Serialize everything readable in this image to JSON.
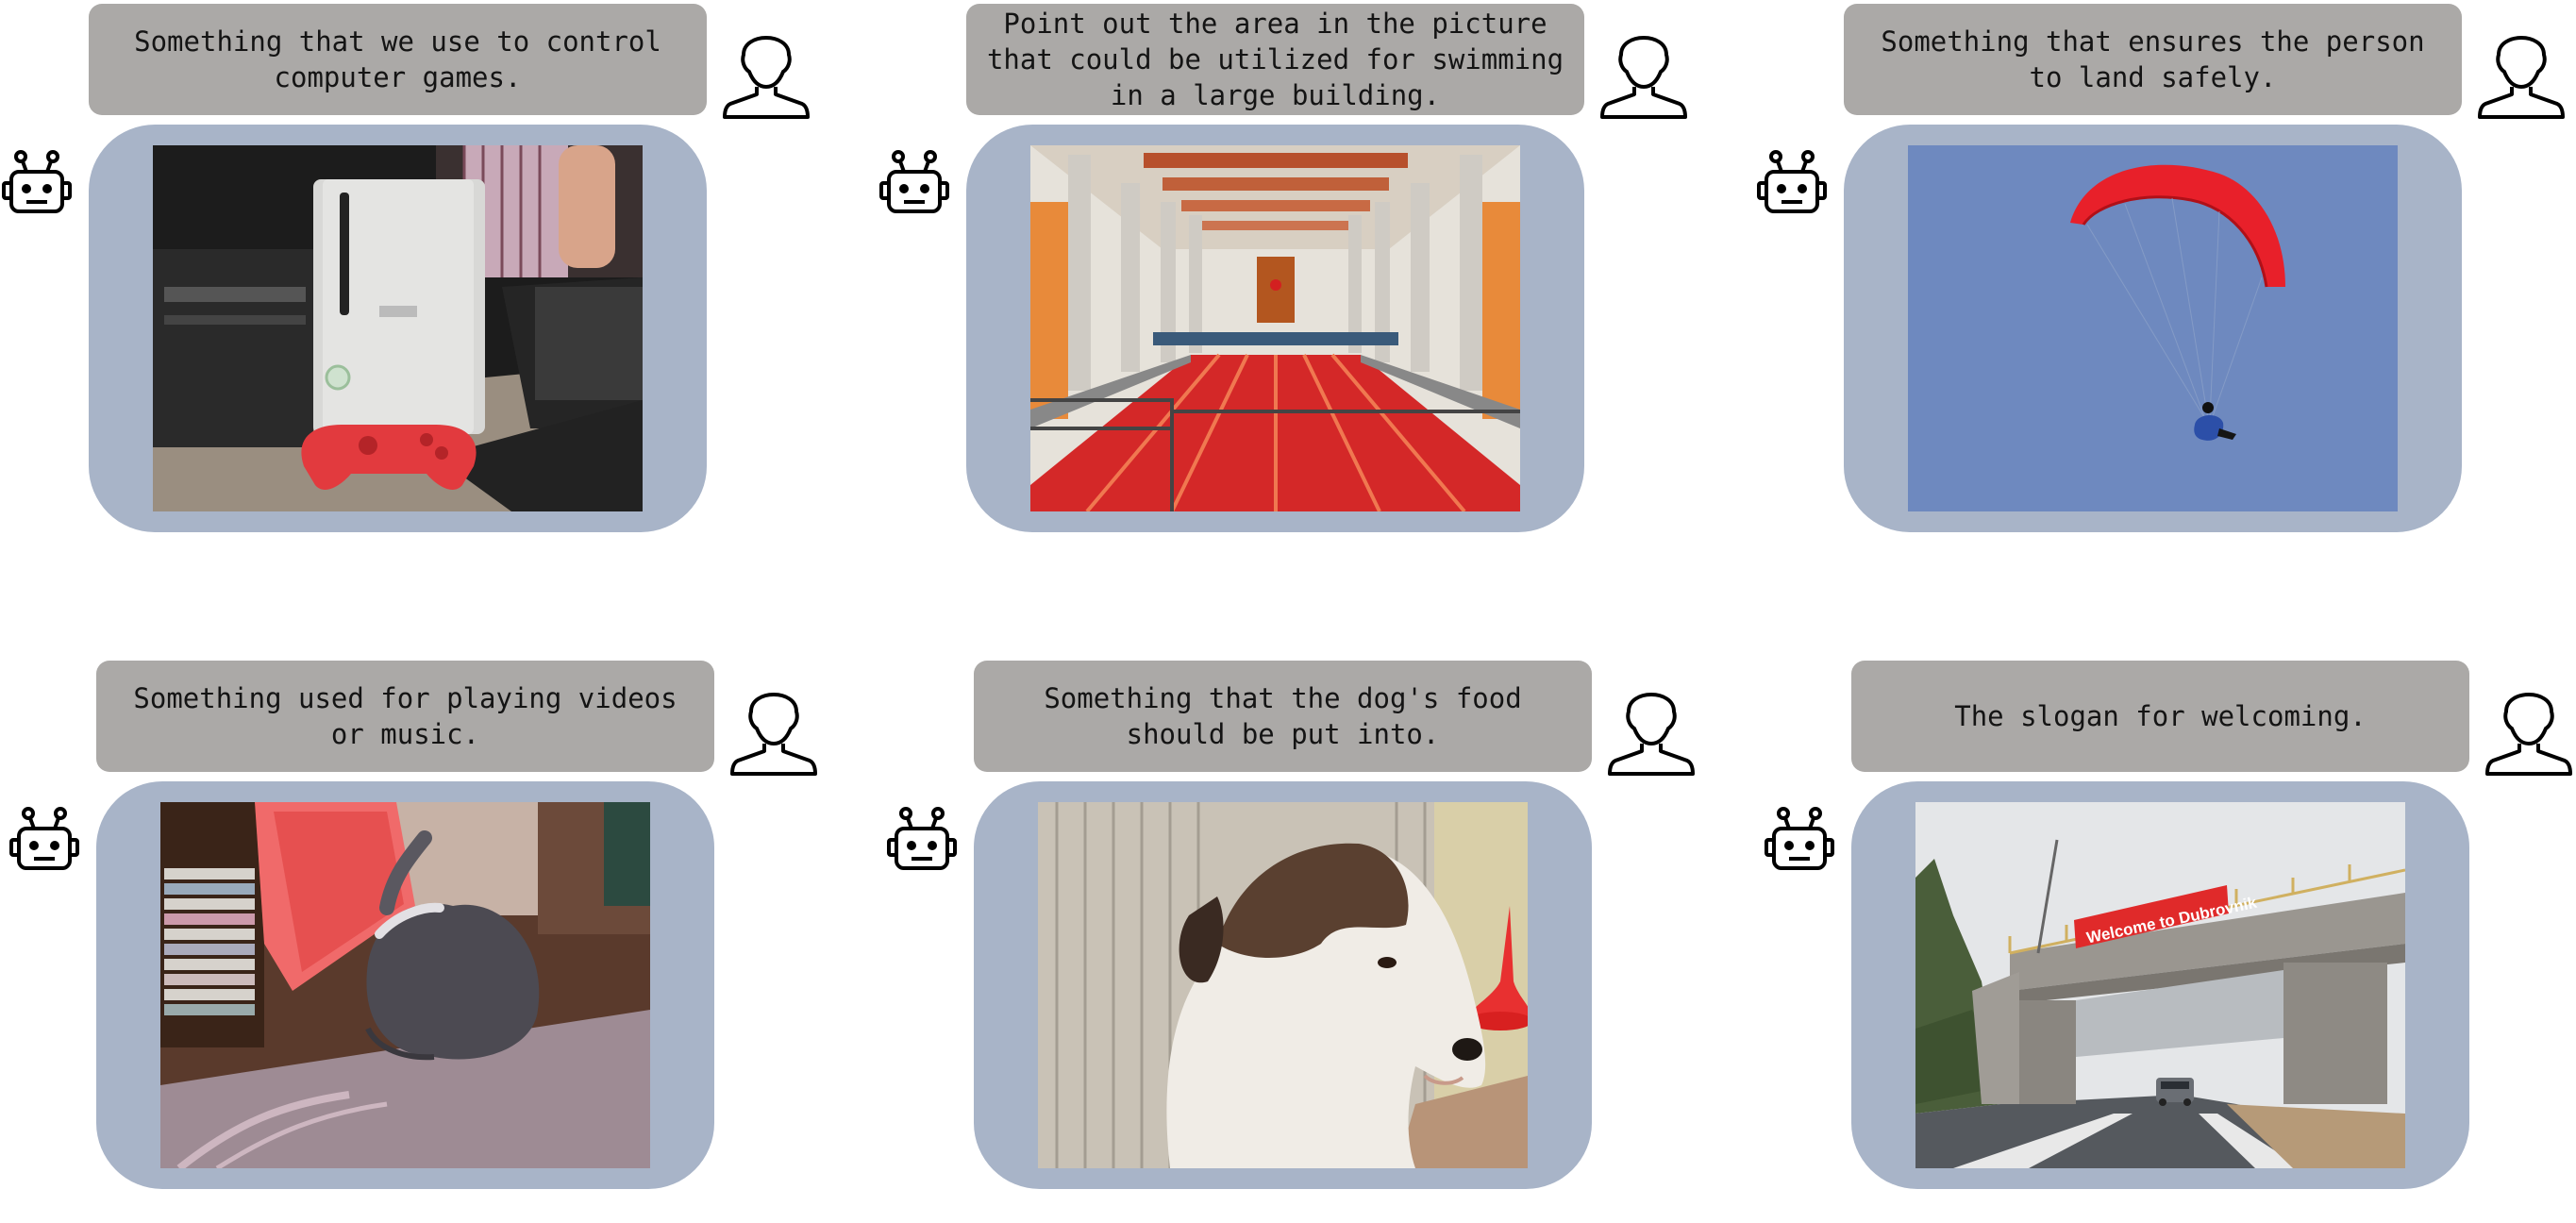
{
  "examples": [
    {
      "query": "Something that we use to control computer games.",
      "photo_subject": "game console and controller",
      "mask_color": "#e02020"
    },
    {
      "query": "Point out the area in the picture that could be utilized for swimming in a large building.",
      "photo_subject": "indoor swimming pool hall",
      "mask_color": "#e02020"
    },
    {
      "query": "Something that ensures the person to land safely.",
      "photo_subject": "paraglider in blue sky",
      "mask_color": "#e02020"
    },
    {
      "query": "Something used for playing videos or music.",
      "photo_subject": "rabbit beside shelf of CDs",
      "mask_color": "#e02020"
    },
    {
      "query": "Something that the dog's food should be put into.",
      "photo_subject": "dog next to a red bowl",
      "mask_color": "#e02020"
    },
    {
      "query": "The slogan for welcoming.",
      "photo_subject": "road bridge with welcome banner",
      "mask_color": "#e02020"
    }
  ],
  "user_icon": "user-silhouette-icon",
  "bot_icon": "robot-icon",
  "banner_text": "Welcome to Dubrovnik"
}
